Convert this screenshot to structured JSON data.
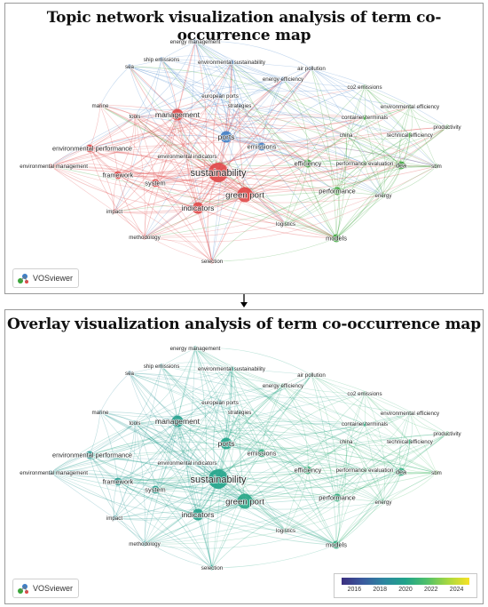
{
  "panel_top": {
    "title": "Topic network visualization analysis of term co-occurrence map",
    "logo_text": "VOSviewer"
  },
  "panel_bottom": {
    "title": "Overlay visualization analysis of term co-occurrence map",
    "logo_text": "VOSviewer",
    "scale_ticks": [
      "2016",
      "2018",
      "2020",
      "2022",
      "2024"
    ]
  },
  "cluster_colors": {
    "red": "#e04848",
    "blue": "#3f7fc6",
    "green": "#3aa43a"
  },
  "nodes": [
    {
      "id": "energy-management",
      "label": "energy management",
      "cluster": "blue",
      "weight": 1,
      "year": 2020.0
    },
    {
      "id": "ship-emissions",
      "label": "ship emissions",
      "cluster": "blue",
      "weight": 1,
      "year": 2019.2
    },
    {
      "id": "environmental-sustainability",
      "label": "environmental sustainability",
      "cluster": "blue",
      "weight": 1,
      "year": 2020.0
    },
    {
      "id": "ports",
      "label": "ports",
      "cluster": "blue",
      "weight": 3,
      "year": 2020.0
    },
    {
      "id": "emissions",
      "label": "emissions",
      "cluster": "blue",
      "weight": 2,
      "year": 2020.6
    },
    {
      "id": "european-ports",
      "label": "european ports",
      "cluster": "blue",
      "weight": 1,
      "year": 2019.0
    },
    {
      "id": "energy-efficiency",
      "label": "energy efficiency",
      "cluster": "blue",
      "weight": 1,
      "year": 2021.0
    },
    {
      "id": "air-pollution",
      "label": "air pollution",
      "cluster": "blue",
      "weight": 1,
      "year": 2020.5
    },
    {
      "id": "strategies",
      "label": "strategies",
      "cluster": "blue",
      "weight": 1,
      "year": 2020.2
    },
    {
      "id": "sea",
      "label": "sea",
      "cluster": "blue",
      "weight": 1,
      "year": 2018.2
    },
    {
      "id": "management",
      "label": "management",
      "cluster": "red",
      "weight": 3,
      "year": 2019.8
    },
    {
      "id": "marine",
      "label": "marine",
      "cluster": "red",
      "weight": 1,
      "year": 2018.6
    },
    {
      "id": "tools",
      "label": "tools",
      "cluster": "red",
      "weight": 1,
      "year": 2019.2
    },
    {
      "id": "environmental-performance",
      "label": "environmental performance",
      "cluster": "red",
      "weight": 2,
      "year": 2019.5
    },
    {
      "id": "environmental-management",
      "label": "environmental management",
      "cluster": "red",
      "weight": 1,
      "year": 2018.8
    },
    {
      "id": "environmental-indicators",
      "label": "environmental indicators",
      "cluster": "red",
      "weight": 1,
      "year": 2019.0
    },
    {
      "id": "framework",
      "label": "framework",
      "cluster": "red",
      "weight": 2,
      "year": 2019.6
    },
    {
      "id": "system",
      "label": "system",
      "cluster": "red",
      "weight": 2,
      "year": 2019.8
    },
    {
      "id": "sustainability",
      "label": "sustainability",
      "cluster": "red",
      "weight": 5,
      "year": 2020.0
    },
    {
      "id": "green-port",
      "label": "green port",
      "cluster": "red",
      "weight": 4,
      "year": 2020.2
    },
    {
      "id": "indicators",
      "label": "indicators",
      "cluster": "red",
      "weight": 3,
      "year": 2019.9
    },
    {
      "id": "impact",
      "label": "impact",
      "cluster": "red",
      "weight": 1,
      "year": 2018.8
    },
    {
      "id": "methodology",
      "label": "methodology",
      "cluster": "red",
      "weight": 1,
      "year": 2019.2
    },
    {
      "id": "selection",
      "label": "selection",
      "cluster": "red",
      "weight": 1,
      "year": 2020.0
    },
    {
      "id": "logistics",
      "label": "logistics",
      "cluster": "green",
      "weight": 1,
      "year": 2020.8
    },
    {
      "id": "co2-emissions",
      "label": "co2 emissions",
      "cluster": "green",
      "weight": 1,
      "year": 2021.0
    },
    {
      "id": "environmental-efficiency",
      "label": "environmental efficiency",
      "cluster": "green",
      "weight": 1,
      "year": 2021.0
    },
    {
      "id": "productivity",
      "label": "productivity",
      "cluster": "green",
      "weight": 1,
      "year": 2021.5
    },
    {
      "id": "container-terminals",
      "label": "container terminals",
      "cluster": "green",
      "weight": 1,
      "year": 2020.6
    },
    {
      "id": "technical-efficiency",
      "label": "technical efficiency",
      "cluster": "green",
      "weight": 1,
      "year": 2020.8
    },
    {
      "id": "china",
      "label": "china",
      "cluster": "green",
      "weight": 1,
      "year": 2021.2
    },
    {
      "id": "efficiency",
      "label": "efficiency",
      "cluster": "green",
      "weight": 2,
      "year": 2020.8
    },
    {
      "id": "performance-evaluation",
      "label": "performance evaluation",
      "cluster": "green",
      "weight": 1,
      "year": 2021.2
    },
    {
      "id": "dea",
      "label": "dea",
      "cluster": "green",
      "weight": 2,
      "year": 2020.5
    },
    {
      "id": "sbm",
      "label": "sbm",
      "cluster": "green",
      "weight": 1,
      "year": 2022.4
    },
    {
      "id": "performance",
      "label": "performance",
      "cluster": "green",
      "weight": 2,
      "year": 2020.6
    },
    {
      "id": "energy",
      "label": "energy",
      "cluster": "green",
      "weight": 1,
      "year": 2021.0
    },
    {
      "id": "models",
      "label": "models",
      "cluster": "green",
      "weight": 2,
      "year": 2020.6
    }
  ]
}
